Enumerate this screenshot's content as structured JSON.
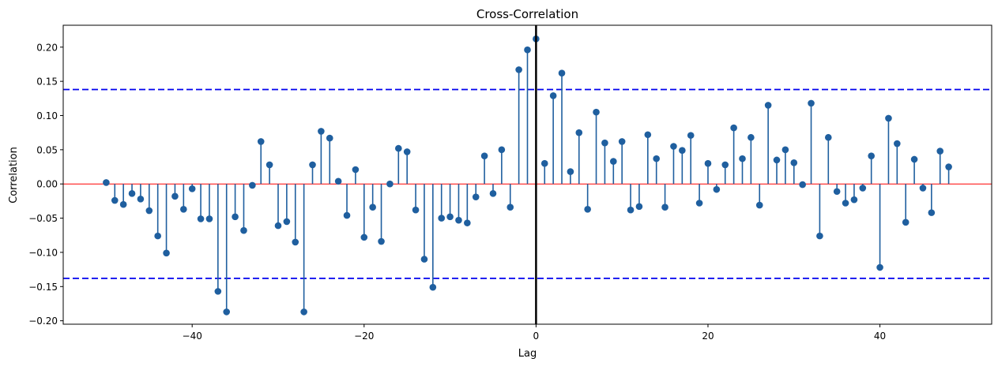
{
  "chart_data": {
    "type": "stem",
    "title": "Cross-Correlation",
    "xlabel": "Lag",
    "ylabel": "Correlation",
    "xlim": [
      -55,
      53
    ],
    "ylim": [
      -0.205,
      0.232
    ],
    "xticks": [
      -40,
      -20,
      0,
      20,
      40
    ],
    "xtick_labels": [
      "−40",
      "−20",
      "0",
      "20",
      "40"
    ],
    "yticks": [
      -0.2,
      -0.15,
      -0.1,
      -0.05,
      0.0,
      0.05,
      0.1,
      0.15,
      0.2
    ],
    "ytick_labels": [
      "−0.20",
      "−0.15",
      "−0.10",
      "−0.05",
      "0.00",
      "0.05",
      "0.10",
      "0.15",
      "0.20"
    ],
    "grid": false,
    "confidence_bounds": [
      0.138,
      -0.138
    ],
    "colors": {
      "stem": "#1f5f9f",
      "marker": "#1f5f9f",
      "zero_line": "#ff0000",
      "confidence": "#0000ee",
      "lag_zero_line": "#000000"
    },
    "x": [
      -50,
      -49,
      -48,
      -47,
      -46,
      -45,
      -44,
      -43,
      -42,
      -41,
      -40,
      -39,
      -38,
      -37,
      -36,
      -35,
      -34,
      -33,
      -32,
      -31,
      -30,
      -29,
      -28,
      -27,
      -26,
      -25,
      -24,
      -23,
      -22,
      -21,
      -20,
      -19,
      -18,
      -17,
      -16,
      -15,
      -14,
      -13,
      -12,
      -11,
      -10,
      -9,
      -8,
      -7,
      -6,
      -5,
      -4,
      -3,
      -2,
      -1,
      0,
      1,
      2,
      3,
      4,
      5,
      6,
      7,
      8,
      9,
      10,
      11,
      12,
      13,
      14,
      15,
      16,
      17,
      18,
      19,
      20,
      21,
      22,
      23,
      24,
      25,
      26,
      27,
      28,
      29,
      30,
      31,
      32,
      33,
      34,
      35,
      36,
      37,
      38,
      39,
      40,
      41,
      42,
      43,
      44,
      45,
      46,
      47,
      48
    ],
    "y": [
      0.002,
      -0.024,
      -0.03,
      -0.014,
      -0.022,
      -0.039,
      -0.076,
      -0.101,
      -0.018,
      -0.037,
      -0.007,
      -0.051,
      -0.051,
      -0.157,
      -0.187,
      -0.048,
      -0.068,
      -0.002,
      0.062,
      0.028,
      -0.061,
      -0.055,
      -0.085,
      -0.187,
      0.028,
      0.077,
      0.067,
      0.004,
      -0.046,
      0.021,
      -0.078,
      -0.034,
      -0.084,
      0.0,
      0.052,
      0.047,
      -0.038,
      -0.11,
      -0.151,
      -0.05,
      -0.048,
      -0.053,
      -0.057,
      -0.019,
      0.041,
      -0.014,
      0.05,
      -0.034,
      0.167,
      0.196,
      0.212,
      0.03,
      0.129,
      0.162,
      0.018,
      0.075,
      -0.037,
      0.105,
      0.06,
      0.033,
      0.062,
      -0.038,
      -0.033,
      0.072,
      0.037,
      -0.034,
      0.055,
      0.049,
      0.071,
      -0.028,
      0.03,
      -0.008,
      0.028,
      0.082,
      0.037,
      0.068,
      -0.031,
      0.115,
      0.035,
      0.05,
      0.031,
      -0.001,
      0.118,
      -0.076,
      0.068,
      -0.011,
      -0.028,
      -0.023,
      -0.006,
      0.041,
      -0.122,
      0.096,
      0.059,
      -0.056,
      0.036,
      -0.006,
      -0.042,
      0.048,
      0.025
    ]
  }
}
